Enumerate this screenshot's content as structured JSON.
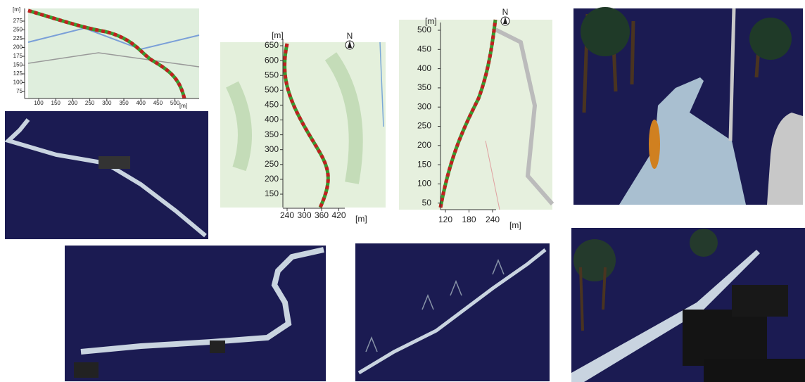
{
  "maps": [
    {
      "y_label": "[m]",
      "y_ticks": [
        "275",
        "250",
        "225",
        "200",
        "175",
        "150",
        "125",
        "100",
        "75"
      ],
      "x_ticks": [
        "100",
        "150",
        "200",
        "250",
        "300",
        "350",
        "400",
        "450",
        "500"
      ],
      "x_label": "[m]"
    },
    {
      "y_label": "[m]",
      "y_ticks": [
        "650",
        "600",
        "550",
        "500",
        "450",
        "400",
        "350",
        "300",
        "250",
        "200",
        "150"
      ],
      "x_ticks": [
        "240",
        "300",
        "360",
        "420"
      ],
      "x_label": "[m]",
      "north": "N"
    },
    {
      "y_label": "[m]",
      "y_ticks": [
        "500",
        "450",
        "400",
        "350",
        "300",
        "250",
        "200",
        "150",
        "100",
        "50"
      ],
      "x_ticks": [
        "120",
        "180",
        "240"
      ],
      "x_label": "[m]",
      "north": "N"
    }
  ]
}
